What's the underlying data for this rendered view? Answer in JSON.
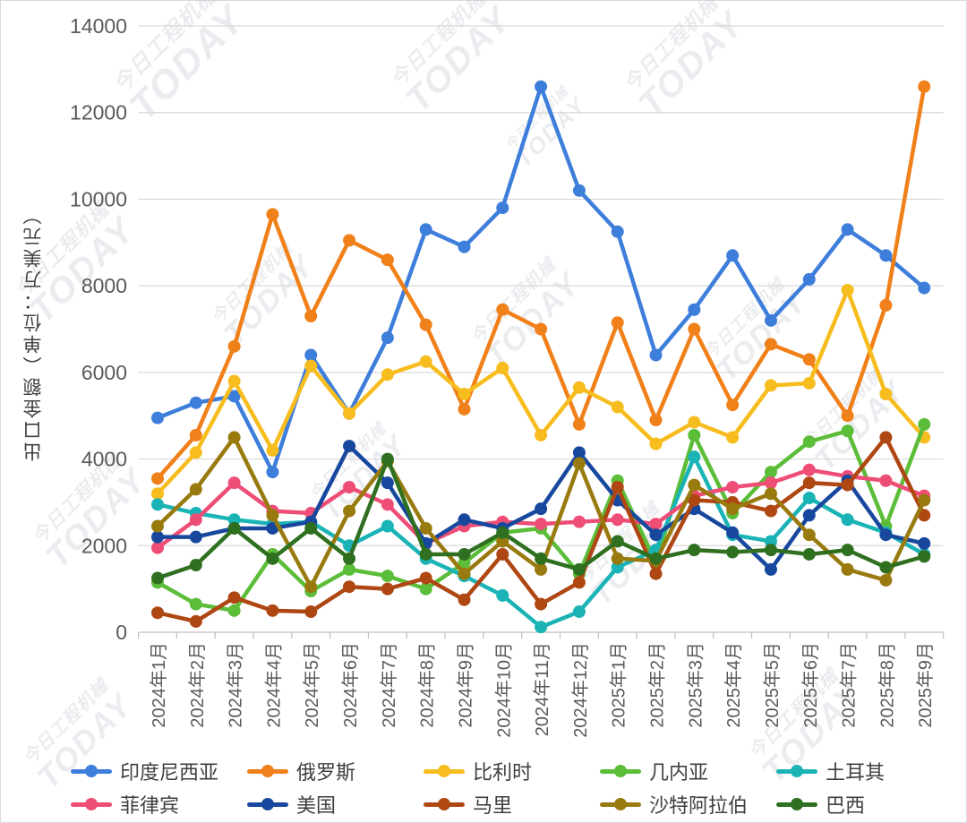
{
  "watermark": {
    "text_cn": "今日工程机械",
    "text_en": "TODAY"
  },
  "axis": {
    "y_tick_labels": [
      "0",
      "2000",
      "4000",
      "6000",
      "8000",
      "10000",
      "12000",
      "14000"
    ]
  },
  "chart_data": {
    "type": "line",
    "title": "",
    "xlabel": "",
    "ylabel": "出口金额（单位：万美元）",
    "ylim": [
      0,
      14000
    ],
    "ytick_step": 2000,
    "grid": true,
    "legend_position": "bottom",
    "categories": [
      "2024年1月",
      "2024年2月",
      "2024年3月",
      "2024年4月",
      "2024年5月",
      "2024年6月",
      "2024年7月",
      "2024年8月",
      "2024年9月",
      "2024年10月",
      "2024年11月",
      "2024年12月",
      "2025年1月",
      "2025年2月",
      "2025年3月",
      "2025年4月",
      "2025年5月",
      "2025年6月",
      "2025年7月",
      "2025年8月",
      "2025年9月"
    ],
    "series": [
      {
        "key": "indonesia",
        "name": "印度尼西亚",
        "color": "#3e7edb",
        "values": [
          4950,
          5300,
          5450,
          3700,
          6400,
          5050,
          6800,
          9300,
          8900,
          9800,
          12600,
          10200,
          9250,
          6400,
          7450,
          8700,
          7200,
          8150,
          9300,
          8700,
          7950
        ]
      },
      {
        "key": "russia",
        "name": "俄罗斯",
        "color": "#f08019",
        "values": [
          3550,
          4550,
          6600,
          9650,
          7300,
          9050,
          8600,
          7100,
          5150,
          7450,
          7000,
          4800,
          7150,
          4900,
          7000,
          5250,
          6650,
          6300,
          5000,
          7550,
          12600
        ]
      },
      {
        "key": "belgium",
        "name": "比利时",
        "color": "#f7bc1d",
        "values": [
          3200,
          4150,
          5800,
          4200,
          6150,
          5050,
          5950,
          6250,
          5500,
          6100,
          4550,
          5650,
          5200,
          4350,
          4850,
          4500,
          5700,
          5750,
          7900,
          5500,
          4500
        ]
      },
      {
        "key": "guinea",
        "name": "几内亚",
        "color": "#5bbd38",
        "values": [
          1150,
          650,
          500,
          1800,
          950,
          1450,
          1300,
          1000,
          1600,
          2300,
          2400,
          1350,
          3500,
          1600,
          4550,
          2750,
          3700,
          4400,
          4650,
          2450,
          4800
        ]
      },
      {
        "key": "turkey",
        "name": "土耳其",
        "color": "#1ab3b6",
        "values": [
          2950,
          2750,
          2600,
          2500,
          2550,
          2000,
          2450,
          1700,
          1300,
          850,
          120,
          475,
          1500,
          1900,
          4050,
          2250,
          2100,
          3100,
          2600,
          2300,
          1800
        ]
      },
      {
        "key": "philippines",
        "name": "菲律宾",
        "color": "#ee4d76",
        "values": [
          1950,
          2600,
          3450,
          2800,
          2750,
          3350,
          2950,
          2050,
          2450,
          2550,
          2500,
          2550,
          2600,
          2500,
          3150,
          3350,
          3450,
          3750,
          3600,
          3500,
          3150
        ]
      },
      {
        "key": "usa",
        "name": "美国",
        "color": "#17489e",
        "values": [
          2200,
          2200,
          2400,
          2400,
          2550,
          4300,
          3450,
          2050,
          2600,
          2400,
          2850,
          4150,
          3050,
          2250,
          2850,
          2300,
          1450,
          2700,
          3500,
          2250,
          2050
        ]
      },
      {
        "key": "mali",
        "name": "马里",
        "color": "#ae4712",
        "values": [
          450,
          250,
          800,
          500,
          475,
          1050,
          1000,
          1250,
          750,
          1800,
          650,
          1150,
          3350,
          1350,
          3050,
          3000,
          2800,
          3450,
          3400,
          4500,
          2700
        ]
      },
      {
        "key": "saudi-arabia",
        "name": "沙特阿拉伯",
        "color": "#997a0f",
        "values": [
          2450,
          3300,
          4500,
          2700,
          1050,
          2800,
          3950,
          2400,
          1350,
          2100,
          1450,
          3900,
          1700,
          1650,
          3400,
          2850,
          3200,
          2250,
          1450,
          1200,
          3050
        ]
      },
      {
        "key": "brazil",
        "name": "巴西",
        "color": "#2f7020",
        "values": [
          1250,
          1550,
          2400,
          1700,
          2400,
          1700,
          4000,
          1800,
          1800,
          2300,
          1700,
          1450,
          2100,
          1700,
          1900,
          1850,
          1900,
          1800,
          1900,
          1500,
          1750
        ]
      }
    ]
  }
}
